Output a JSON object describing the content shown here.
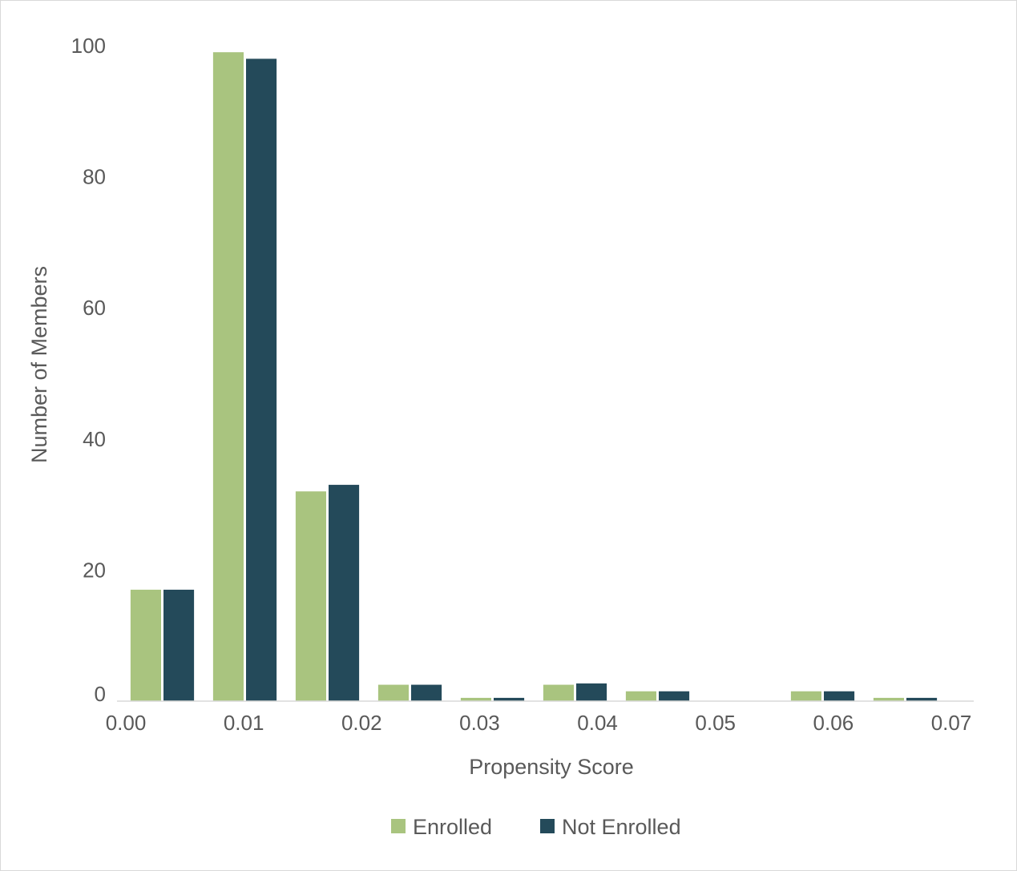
{
  "chart_data": {
    "type": "bar",
    "title": "",
    "xlabel": "Propensity Score",
    "ylabel": "Number of Members",
    "x_ticks": [
      "0.00",
      "0.01",
      "0.02",
      "0.03",
      "0.04",
      "0.05",
      "0.06",
      "0.07"
    ],
    "y_ticks": [
      "0",
      "20",
      "40",
      "60",
      "80",
      "100"
    ],
    "ylim": [
      0,
      100
    ],
    "xlim": [
      0.0,
      0.07
    ],
    "grid": false,
    "legend_position": "bottom",
    "bin_centers": [
      0.0035,
      0.0105,
      0.0175,
      0.0245,
      0.0315,
      0.0385,
      0.0455,
      0.0525,
      0.0595,
      0.0665
    ],
    "series": [
      {
        "name": "Enrolled",
        "color": "#a9c47f",
        "values": [
          17,
          99,
          32,
          2.5,
          0.5,
          2.5,
          1.5,
          0,
          1.5,
          0.5
        ]
      },
      {
        "name": "Not Enrolled",
        "color": "#244a5a",
        "values": [
          17,
          98,
          33,
          2.5,
          0.5,
          2.7,
          1.5,
          0,
          1.5,
          0.5
        ]
      }
    ]
  }
}
